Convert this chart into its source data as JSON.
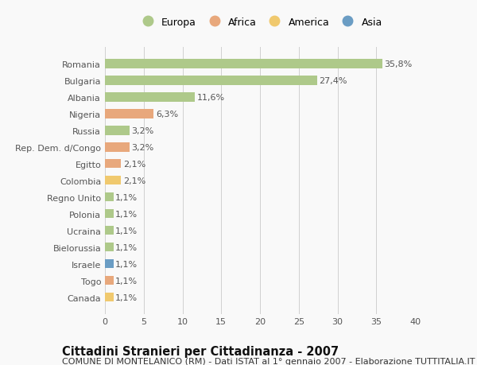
{
  "countries": [
    "Romania",
    "Bulgaria",
    "Albania",
    "Nigeria",
    "Russia",
    "Rep. Dem. d/Congo",
    "Egitto",
    "Colombia",
    "Regno Unito",
    "Polonia",
    "Ucraina",
    "Bielorussia",
    "Israele",
    "Togo",
    "Canada"
  ],
  "values": [
    35.8,
    27.4,
    11.6,
    6.3,
    3.2,
    3.2,
    2.1,
    2.1,
    1.1,
    1.1,
    1.1,
    1.1,
    1.1,
    1.1,
    1.1
  ],
  "labels": [
    "35,8%",
    "27,4%",
    "11,6%",
    "6,3%",
    "3,2%",
    "3,2%",
    "2,1%",
    "2,1%",
    "1,1%",
    "1,1%",
    "1,1%",
    "1,1%",
    "1,1%",
    "1,1%",
    "1,1%"
  ],
  "colors": [
    "#aec98a",
    "#aec98a",
    "#aec98a",
    "#e8a87c",
    "#aec98a",
    "#e8a87c",
    "#e8a87c",
    "#f0c96e",
    "#aec98a",
    "#aec98a",
    "#aec98a",
    "#aec98a",
    "#6b9dc4",
    "#e8a87c",
    "#f0c96e"
  ],
  "legend": {
    "Europa": "#aec98a",
    "Africa": "#e8a87c",
    "America": "#f0c96e",
    "Asia": "#6b9dc4"
  },
  "xlim": [
    0,
    40
  ],
  "xticks": [
    0,
    5,
    10,
    15,
    20,
    25,
    30,
    35,
    40
  ],
  "title": "Cittadini Stranieri per Cittadinanza - 2007",
  "subtitle": "COMUNE DI MONTELANICO (RM) - Dati ISTAT al 1° gennaio 2007 - Elaborazione TUTTITALIA.IT",
  "bg_color": "#f9f9f9",
  "grid_color": "#d0d0d0",
  "bar_height": 0.55,
  "title_fontsize": 10.5,
  "subtitle_fontsize": 8,
  "tick_fontsize": 8,
  "label_fontsize": 8,
  "legend_fontsize": 9
}
